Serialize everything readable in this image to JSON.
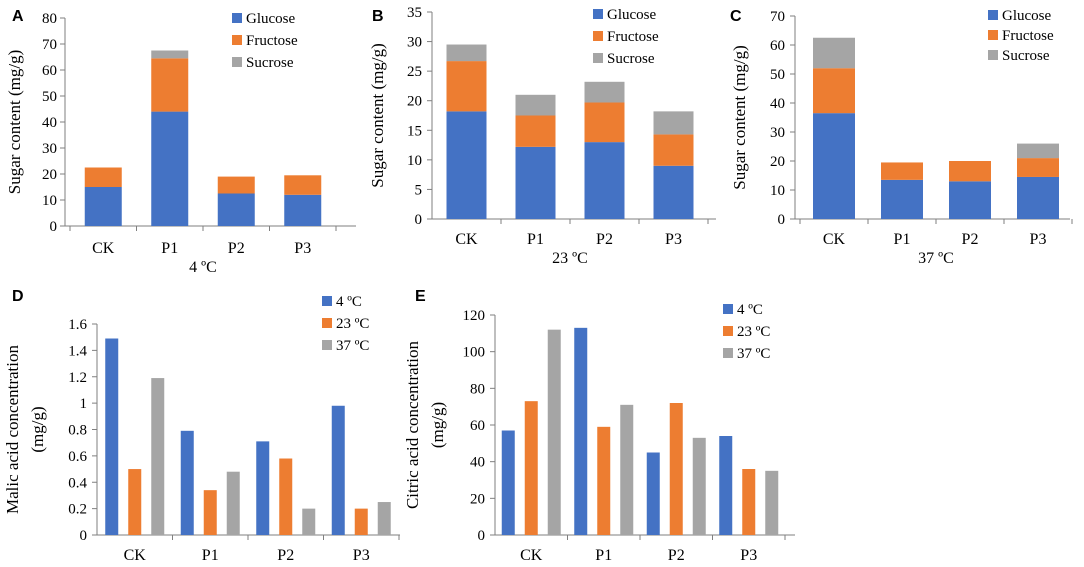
{
  "chart_data": [
    {
      "panel": "A",
      "type": "bar",
      "stacked": true,
      "categories": [
        "CK",
        "P1",
        "P2",
        "P3"
      ],
      "xlabel": "4 ºC",
      "ylabel": "Sugar content (mg/g)",
      "ylim": [
        0,
        80
      ],
      "yticks": [
        0,
        10,
        20,
        30,
        40,
        50,
        60,
        70,
        80
      ],
      "legend_position": "top-right",
      "series": [
        {
          "name": "Glucose",
          "color": "#4472C4",
          "values": [
            15,
            44,
            12.5,
            12
          ]
        },
        {
          "name": "Fructose",
          "color": "#ED7D31",
          "values": [
            7.5,
            20.5,
            6.5,
            7.5
          ]
        },
        {
          "name": "Sucrose",
          "color": "#A5A5A5",
          "values": [
            0,
            3,
            0,
            0
          ]
        }
      ]
    },
    {
      "panel": "B",
      "type": "bar",
      "stacked": true,
      "categories": [
        "CK",
        "P1",
        "P2",
        "P3"
      ],
      "xlabel": "23 ºC",
      "ylabel": "Sugar content (mg/g)",
      "ylim": [
        0,
        35
      ],
      "yticks": [
        0,
        5,
        10,
        15,
        20,
        25,
        30,
        35
      ],
      "legend_position": "top-right",
      "series": [
        {
          "name": "Glucose",
          "color": "#4472C4",
          "values": [
            18.2,
            12.2,
            13,
            9
          ]
        },
        {
          "name": "Fructose",
          "color": "#ED7D31",
          "values": [
            8.5,
            5.3,
            6.7,
            5.3
          ]
        },
        {
          "name": "Sucrose",
          "color": "#A5A5A5",
          "values": [
            2.8,
            3.5,
            3.5,
            3.9
          ]
        }
      ]
    },
    {
      "panel": "C",
      "type": "bar",
      "stacked": true,
      "categories": [
        "CK",
        "P1",
        "P2",
        "P3"
      ],
      "xlabel": "37 ºC",
      "ylabel": "Sugar content (mg/g)",
      "ylim": [
        0,
        70
      ],
      "yticks": [
        0,
        10,
        20,
        30,
        40,
        50,
        60,
        70
      ],
      "legend_position": "top-right",
      "series": [
        {
          "name": "Glucose",
          "color": "#4472C4",
          "values": [
            36.5,
            13.5,
            13,
            14.5
          ]
        },
        {
          "name": "Fructose",
          "color": "#ED7D31",
          "values": [
            15.5,
            6,
            7,
            6.5
          ]
        },
        {
          "name": "Sucrose",
          "color": "#A5A5A5",
          "values": [
            10.5,
            0,
            0,
            5
          ]
        }
      ]
    },
    {
      "panel": "D",
      "type": "bar",
      "stacked": false,
      "categories": [
        "CK",
        "P1",
        "P2",
        "P3"
      ],
      "xlabel": "",
      "ylabel": [
        "Malic acid concentration",
        "(mg/g)"
      ],
      "ylim": [
        0,
        1.6
      ],
      "yticks": [
        0,
        0.2,
        0.4,
        0.6,
        0.8,
        1,
        1.2,
        1.4,
        1.6
      ],
      "ytick_labels": [
        "0",
        "0.2",
        "0.4",
        "0.6",
        "0.8",
        "1",
        "1.2",
        "1.4",
        "1.6"
      ],
      "legend_position": "top-right",
      "series": [
        {
          "name": "4 ºC",
          "color": "#4472C4",
          "values": [
            1.49,
            0.79,
            0.71,
            0.98
          ]
        },
        {
          "name": "23 ºC",
          "color": "#ED7D31",
          "values": [
            0.5,
            0.34,
            0.58,
            0.2
          ]
        },
        {
          "name": "37 ºC",
          "color": "#A5A5A5",
          "values": [
            1.19,
            0.48,
            0.2,
            0.25
          ]
        }
      ]
    },
    {
      "panel": "E",
      "type": "bar",
      "stacked": false,
      "categories": [
        "CK",
        "P1",
        "P2",
        "P3"
      ],
      "xlabel": "",
      "ylabel": [
        "Citric acid concentration",
        "(mg/g)"
      ],
      "ylim": [
        0,
        120
      ],
      "yticks": [
        0,
        20,
        40,
        60,
        80,
        100,
        120
      ],
      "legend_position": "top-right",
      "series": [
        {
          "name": "4 ºC",
          "color": "#4472C4",
          "values": [
            57,
            113,
            45,
            54
          ]
        },
        {
          "name": "23 ºC",
          "color": "#ED7D31",
          "values": [
            73,
            59,
            72,
            36
          ]
        },
        {
          "name": "37 ºC",
          "color": "#A5A5A5",
          "values": [
            112,
            71,
            53,
            35
          ]
        }
      ]
    }
  ]
}
